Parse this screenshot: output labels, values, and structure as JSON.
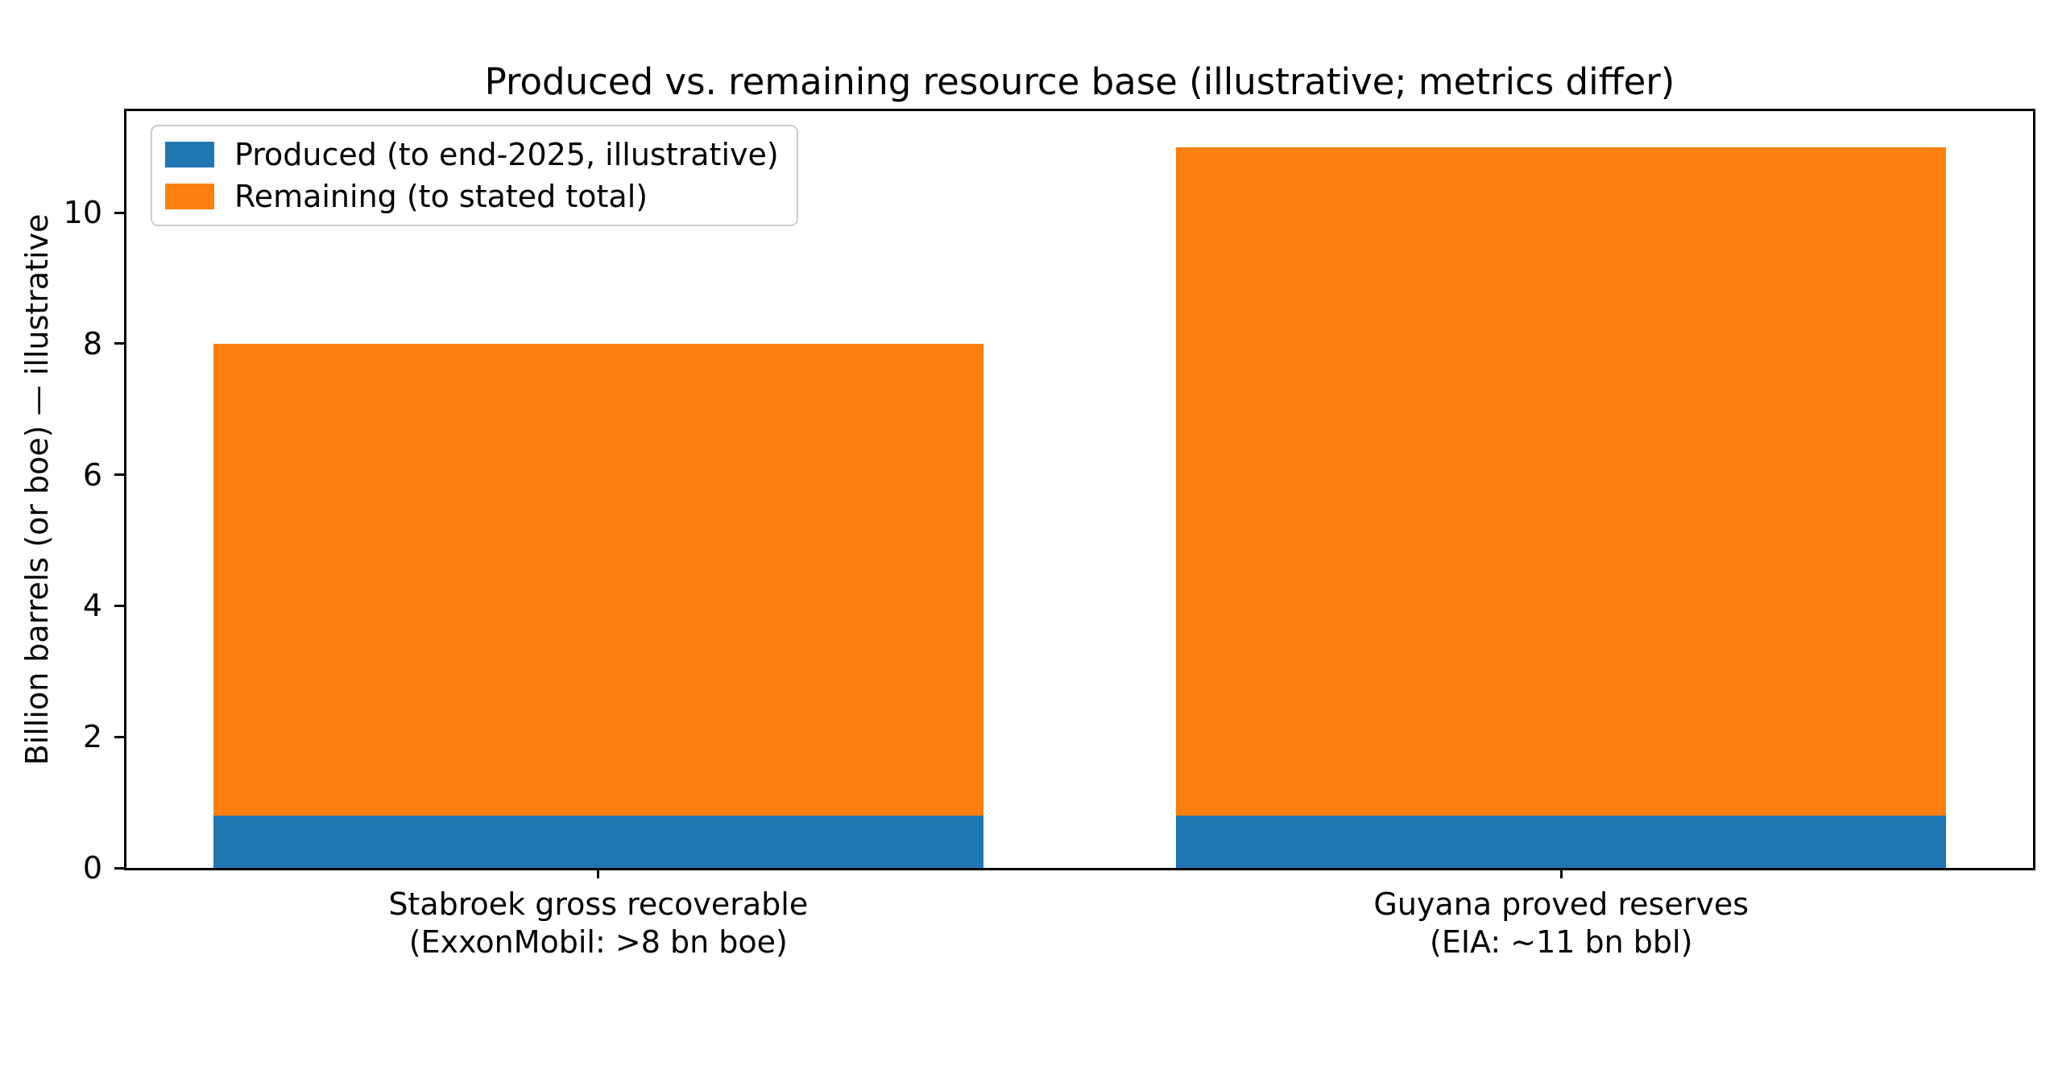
{
  "figure": {
    "background_color": "#ffffff"
  },
  "chart_data": {
    "type": "bar",
    "stacked": true,
    "title": "Produced vs. remaining resource base (illustrative; metrics differ)",
    "xlabel": "",
    "ylabel": "Billion barrels (or boe) — illustrative",
    "categories": [
      "Stabroek gross recoverable (ExxonMobil: >8 bn boe)",
      "Guyana proved reserves (EIA: ~11 bn bbl)"
    ],
    "xtick_label_lines": [
      [
        "Stabroek gross recoverable",
        "(ExxonMobil: >8 bn boe)"
      ],
      [
        "Guyana proved reserves",
        "(EIA: ~11 bn bbl)"
      ]
    ],
    "series": [
      {
        "name": "Produced (to end-2025, illustrative)",
        "color": "#1f77b4",
        "values": [
          0.8,
          0.8
        ]
      },
      {
        "name": "Remaining (to stated total)",
        "color": "#ff7f0e",
        "values": [
          7.2,
          10.2
        ]
      }
    ],
    "stack_totals": [
      8,
      11
    ],
    "yticks": [
      0,
      2,
      4,
      6,
      8,
      10
    ],
    "ylim": [
      0,
      11.55
    ],
    "xlim": [
      -0.49,
      1.49
    ],
    "bar_width": 0.8,
    "grid": false,
    "legend": {
      "position": "upper left",
      "entries": [
        "Produced (to end-2025, illustrative)",
        "Remaining (to stated total)"
      ]
    },
    "style": {
      "axis_color": "#000000",
      "legend_border_color": "#cccccc"
    }
  }
}
